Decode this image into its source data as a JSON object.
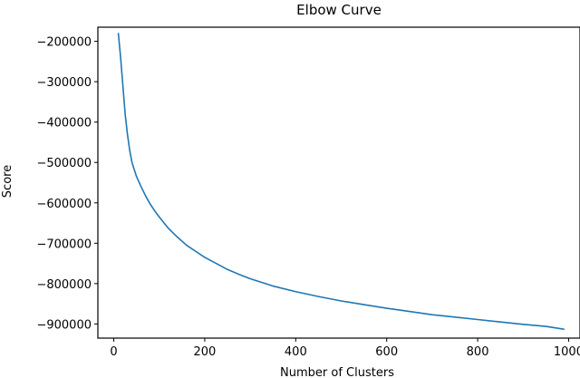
{
  "chart_data": {
    "type": "line",
    "title": "Elbow Curve",
    "xlabel": "Number of Clusters",
    "ylabel": "Score",
    "xlim": [
      -35,
      1025
    ],
    "ylim": [
      -935000,
      -165000
    ],
    "xticks": [
      0,
      200,
      400,
      600,
      800,
      1000
    ],
    "xtick_labels": [
      "0",
      "200",
      "400",
      "600",
      "800",
      "1000"
    ],
    "yticks": [
      -200000,
      -300000,
      -400000,
      -500000,
      -600000,
      -700000,
      -800000,
      -900000
    ],
    "ytick_labels": [
      "−200000",
      "−300000",
      "−400000",
      "−500000",
      "−600000",
      "−700000",
      "−800000",
      "−900000"
    ],
    "grid": false,
    "series": [
      {
        "color": "#1f77b4",
        "x": [
          10,
          15,
          20,
          25,
          30,
          35,
          40,
          50,
          60,
          70,
          80,
          90,
          100,
          120,
          140,
          160,
          180,
          200,
          225,
          250,
          275,
          300,
          350,
          400,
          450,
          500,
          550,
          600,
          650,
          700,
          750,
          800,
          850,
          900,
          950,
          990
        ],
        "y": [
          -180000,
          -240000,
          -310000,
          -380000,
          -430000,
          -470000,
          -500000,
          -535000,
          -560000,
          -583000,
          -603000,
          -620000,
          -635000,
          -663000,
          -685000,
          -705000,
          -720000,
          -735000,
          -750000,
          -765000,
          -777000,
          -788000,
          -806000,
          -820000,
          -832000,
          -843000,
          -852000,
          -861000,
          -869000,
          -877000,
          -883000,
          -889000,
          -895000,
          -901000,
          -906000,
          -913000
        ]
      }
    ]
  }
}
